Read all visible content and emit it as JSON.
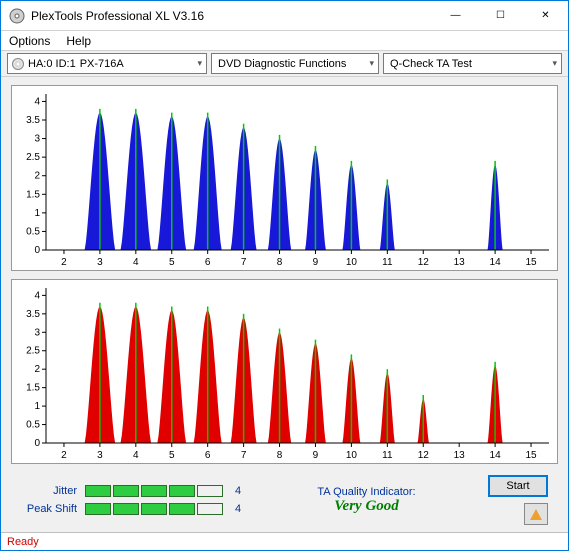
{
  "window": {
    "title": "PlexTools Professional XL V3.16",
    "minimize": "—",
    "maximize": "☐",
    "close": "✕"
  },
  "menu": {
    "options": "Options",
    "help": "Help"
  },
  "toolbar": {
    "drive_prefix": "HA:0 ID:1",
    "drive_model": "PX-716A",
    "func_sel": "DVD Diagnostic Functions",
    "test_sel": "Q-Check TA Test"
  },
  "chart_top": {
    "type": "histogram-peaks",
    "bg": "#ffffff",
    "axis_color": "#000000",
    "grid_color": "#000000",
    "series_color": "#1818d8",
    "marker_line_color": "#00c800",
    "font_size": 10,
    "xlim": [
      1.5,
      15.5
    ],
    "ylim": [
      0,
      4.2
    ],
    "xticks": [
      2,
      3,
      4,
      5,
      6,
      7,
      8,
      9,
      10,
      11,
      12,
      13,
      14,
      15
    ],
    "yticks": [
      0,
      0.5,
      1,
      1.5,
      2,
      2.5,
      3,
      3.5,
      4
    ],
    "peaks": [
      {
        "c": 3,
        "h": 3.7,
        "w": 0.85
      },
      {
        "c": 4,
        "h": 3.7,
        "w": 0.85
      },
      {
        "c": 5,
        "h": 3.6,
        "w": 0.8
      },
      {
        "c": 6,
        "h": 3.6,
        "w": 0.78
      },
      {
        "c": 7,
        "h": 3.3,
        "w": 0.72
      },
      {
        "c": 8,
        "h": 3.0,
        "w": 0.65
      },
      {
        "c": 9,
        "h": 2.7,
        "w": 0.58
      },
      {
        "c": 10,
        "h": 2.3,
        "w": 0.5
      },
      {
        "c": 11,
        "h": 1.8,
        "w": 0.42
      },
      {
        "c": 14,
        "h": 2.3,
        "w": 0.42
      }
    ]
  },
  "chart_bottom": {
    "type": "histogram-peaks",
    "bg": "#ffffff",
    "axis_color": "#000000",
    "grid_color": "#000000",
    "series_color": "#e00000",
    "marker_line_color": "#00c800",
    "font_size": 10,
    "xlim": [
      1.5,
      15.5
    ],
    "ylim": [
      0,
      4.2
    ],
    "xticks": [
      2,
      3,
      4,
      5,
      6,
      7,
      8,
      9,
      10,
      11,
      12,
      13,
      14,
      15
    ],
    "yticks": [
      0,
      0.5,
      1,
      1.5,
      2,
      2.5,
      3,
      3.5,
      4
    ],
    "peaks": [
      {
        "c": 3,
        "h": 3.7,
        "w": 0.85
      },
      {
        "c": 4,
        "h": 3.7,
        "w": 0.85
      },
      {
        "c": 5,
        "h": 3.6,
        "w": 0.8
      },
      {
        "c": 6,
        "h": 3.6,
        "w": 0.78
      },
      {
        "c": 7,
        "h": 3.4,
        "w": 0.72
      },
      {
        "c": 8,
        "h": 3.0,
        "w": 0.65
      },
      {
        "c": 9,
        "h": 2.7,
        "w": 0.58
      },
      {
        "c": 10,
        "h": 2.3,
        "w": 0.5
      },
      {
        "c": 11,
        "h": 1.9,
        "w": 0.42
      },
      {
        "c": 12,
        "h": 1.2,
        "w": 0.32
      },
      {
        "c": 14,
        "h": 2.1,
        "w": 0.42
      }
    ]
  },
  "meters": {
    "jitter": {
      "label": "Jitter",
      "value": 4,
      "max": 5
    },
    "peak_shift": {
      "label": "Peak Shift",
      "value": 4,
      "max": 5
    }
  },
  "quality": {
    "label": "TA Quality Indicator:",
    "value": "Very Good",
    "color": "#008000"
  },
  "buttons": {
    "start": "Start"
  },
  "status": {
    "text": "Ready",
    "color": "#d00000"
  }
}
